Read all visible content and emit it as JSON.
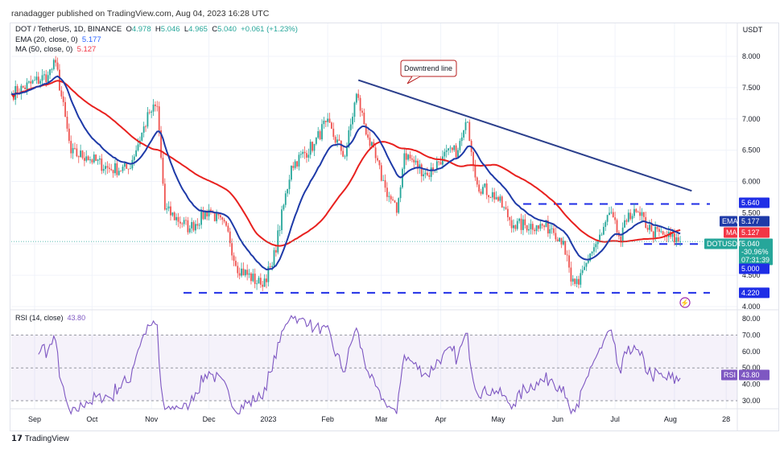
{
  "header": {
    "published": "ranadagger published on TradingView.com, Aug 04, 2023 16:28 UTC"
  },
  "legend": {
    "symbol": "DOT / TetherUS, 1D, BINANCE",
    "open_label": "O",
    "open": "4.978",
    "high_label": "H",
    "high": "5.046",
    "low_label": "L",
    "low": "4.965",
    "close_label": "C",
    "close": "5.040",
    "change": "+0.061 (+1.23%)",
    "ema_label": "EMA (20, close, 0)",
    "ema_value": "5.177",
    "ma_label": "MA (50, close, 0)",
    "ma_value": "5.127",
    "rsi_label": "RSI (14, close)",
    "rsi_value": "43.80"
  },
  "price_axis": {
    "currency": "USDT",
    "ticks": [
      "8.000",
      "7.500",
      "7.000",
      "6.500",
      "6.000",
      "5.500",
      "4.500",
      "4.000"
    ],
    "badges": {
      "level_high": "5.640",
      "level_mid": "5.000",
      "level_low": "4.220",
      "ema_tag": "EMA",
      "ema": "5.177",
      "ma_tag": "MA",
      "ma": "5.127",
      "symbol_tag": "DOTUSDT",
      "price": "5.040",
      "pct": "-30.96%",
      "countdown": "07:31:39"
    }
  },
  "rsi_axis": {
    "ticks": [
      "80.00",
      "70.00",
      "60.00",
      "50.00",
      "40.00",
      "30.00"
    ],
    "tag": "RSI",
    "value": "43.80"
  },
  "time_axis": {
    "labels": [
      "Sep",
      "Oct",
      "Nov",
      "Dec",
      "2023",
      "Feb",
      "Mar",
      "Apr",
      "May",
      "Jun",
      "Jul",
      "Aug",
      "28"
    ]
  },
  "annotation": {
    "text": "Downtrend line"
  },
  "branding": {
    "logo": "TradingView"
  },
  "colors": {
    "up": "#26a69a",
    "down": "#ef5350",
    "ema": "#1e3aa8",
    "ma": "#e8211f",
    "trendline": "#2b3f8c",
    "levels": "#1f2ee6",
    "rsi": "#7e57c2"
  },
  "chart_data": {
    "type": "candlestick",
    "symbol": "DOTUSDT",
    "ylim": [
      4.0,
      8.3
    ],
    "grid": true,
    "closes_approx": [
      [
        "2022-08-20",
        7.4
      ],
      [
        "2022-09-08",
        7.7
      ],
      [
        "2022-09-12",
        7.9
      ],
      [
        "2022-09-20",
        6.45
      ],
      [
        "2022-09-28",
        6.4
      ],
      [
        "2022-10-10",
        6.2
      ],
      [
        "2022-10-20",
        6.2
      ],
      [
        "2022-10-31",
        7.1
      ],
      [
        "2022-11-04",
        7.2
      ],
      [
        "2022-11-08",
        5.55
      ],
      [
        "2022-11-21",
        5.25
      ],
      [
        "2022-12-01",
        5.55
      ],
      [
        "2022-12-11",
        5.2
      ],
      [
        "2022-12-15",
        4.65
      ],
      [
        "2022-12-28",
        4.35
      ],
      [
        "2023-01-03",
        4.65
      ],
      [
        "2023-01-13",
        6.25
      ],
      [
        "2023-01-25",
        6.6
      ],
      [
        "2023-01-31",
        6.95
      ],
      [
        "2023-02-10",
        6.4
      ],
      [
        "2023-02-16",
        7.4
      ],
      [
        "2023-02-22",
        6.7
      ],
      [
        "2023-03-03",
        5.9
      ],
      [
        "2023-03-09",
        5.5
      ],
      [
        "2023-03-13",
        6.45
      ],
      [
        "2023-03-25",
        6.1
      ],
      [
        "2023-04-02",
        6.4
      ],
      [
        "2023-04-10",
        6.5
      ],
      [
        "2023-04-15",
        6.95
      ],
      [
        "2023-04-20",
        5.95
      ],
      [
        "2023-04-30",
        5.75
      ],
      [
        "2023-05-09",
        5.3
      ],
      [
        "2023-05-21",
        5.3
      ],
      [
        "2023-05-29",
        5.25
      ],
      [
        "2023-06-04",
        5.05
      ],
      [
        "2023-06-08",
        4.4
      ],
      [
        "2023-06-12",
        4.35
      ],
      [
        "2023-06-18",
        4.85
      ],
      [
        "2023-06-24",
        5.15
      ],
      [
        "2023-06-28",
        5.5
      ],
      [
        "2023-07-04",
        5.05
      ],
      [
        "2023-07-08",
        5.5
      ],
      [
        "2023-07-14",
        5.45
      ],
      [
        "2023-07-20",
        5.2
      ],
      [
        "2023-07-26",
        5.15
      ],
      [
        "2023-08-04",
        5.04
      ]
    ],
    "horizontal_levels": [
      5.64,
      5.0,
      4.22
    ],
    "trendline": [
      [
        "2023-02-17",
        7.62
      ],
      [
        "2023-08-10",
        5.85
      ]
    ],
    "indicators": {
      "ema_20": 5.177,
      "ma_50": 5.127,
      "rsi_14": 43.8,
      "rsi_bands": [
        30,
        50,
        70
      ]
    }
  }
}
